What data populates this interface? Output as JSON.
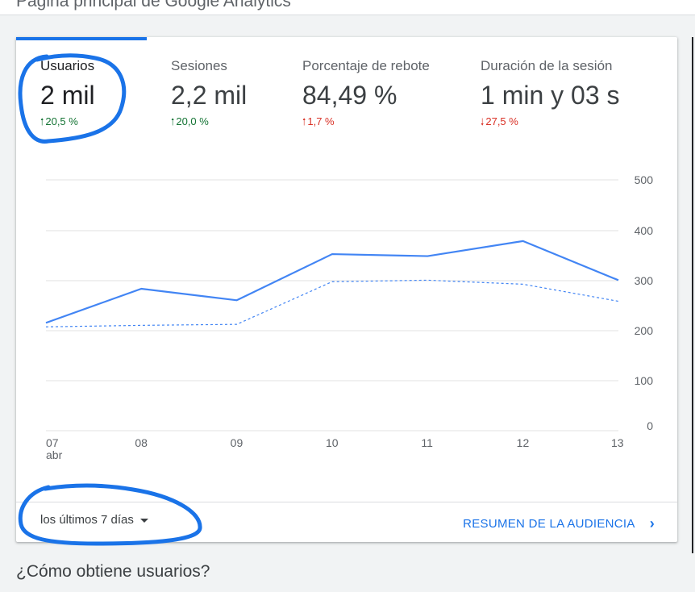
{
  "page": {
    "title": "Página principal de Google Analytics"
  },
  "metrics": [
    {
      "label": "Usuarios",
      "value": "2 mil",
      "change": "20,5 %",
      "direction": "up",
      "tone": "good"
    },
    {
      "label": "Sesiones",
      "value": "2,2 mil",
      "change": "20,0 %",
      "direction": "up",
      "tone": "good"
    },
    {
      "label": "Porcentaje de rebote",
      "value": "84,49 %",
      "change": "1,7 %",
      "direction": "up",
      "tone": "bad"
    },
    {
      "label": "Duración de la sesión",
      "value": "1 min y 03 s",
      "change": "27,5 %",
      "direction": "down",
      "tone": "bad"
    }
  ],
  "chart_data": {
    "type": "line",
    "x": [
      "07",
      "08",
      "09",
      "10",
      "11",
      "12",
      "13"
    ],
    "x_sublabel": "abr",
    "series": [
      {
        "values": [
          215,
          283,
          260,
          352,
          348,
          378,
          300
        ],
        "style": "solid",
        "color": "#4285f4"
      },
      {
        "values": [
          207,
          210,
          212,
          297,
          300,
          292,
          258
        ],
        "style": "dashed",
        "color": "#4285f4"
      }
    ],
    "yticks": [
      "500",
      "400",
      "300",
      "200",
      "100",
      "0"
    ],
    "ylim": [
      0,
      500
    ],
    "grid": true,
    "axis_side": "right"
  },
  "footer": {
    "date_range": "los últimos 7 días",
    "audience_link": "RESUMEN DE LA AUDIENCIA"
  },
  "section": {
    "heading": "¿Cómo obtiene usuarios?"
  },
  "colors": {
    "accent": "#1a73e8",
    "annotation": "#1a73e8",
    "positive": "#137333",
    "negative": "#d93025"
  }
}
